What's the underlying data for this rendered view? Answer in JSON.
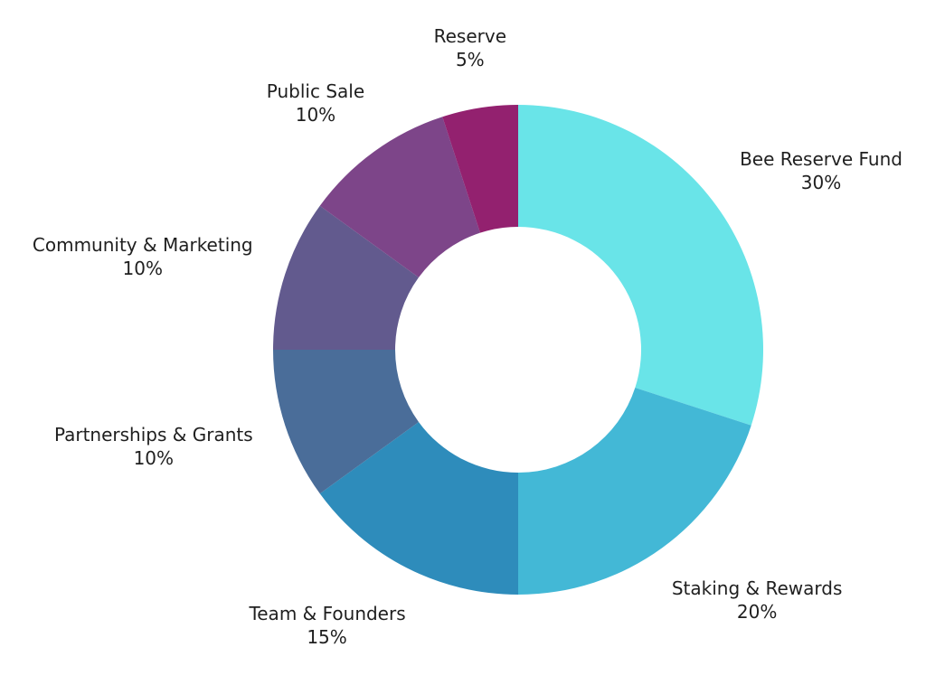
{
  "chart_data": {
    "type": "pie",
    "style": "donut",
    "start_angle_deg": 0,
    "direction": "clockwise",
    "slices": [
      {
        "label": "Bee Reserve Fund",
        "value": 30,
        "value_label": "30%",
        "color": "#69E4E8"
      },
      {
        "label": "Staking & Rewards",
        "value": 20,
        "value_label": "20%",
        "color": "#43B8D6"
      },
      {
        "label": "Team & Founders",
        "value": 15,
        "value_label": "15%",
        "color": "#2E8CBB"
      },
      {
        "label": "Partnerships & Grants",
        "value": 10,
        "value_label": "10%",
        "color": "#4A6D99"
      },
      {
        "label": "Community & Marketing",
        "value": 10,
        "value_label": "10%",
        "color": "#625A8E"
      },
      {
        "label": "Public Sale",
        "value": 10,
        "value_label": "10%",
        "color": "#7D4589"
      },
      {
        "label": "Reserve",
        "value": 5,
        "value_label": "5%",
        "color": "#93216F"
      }
    ]
  }
}
